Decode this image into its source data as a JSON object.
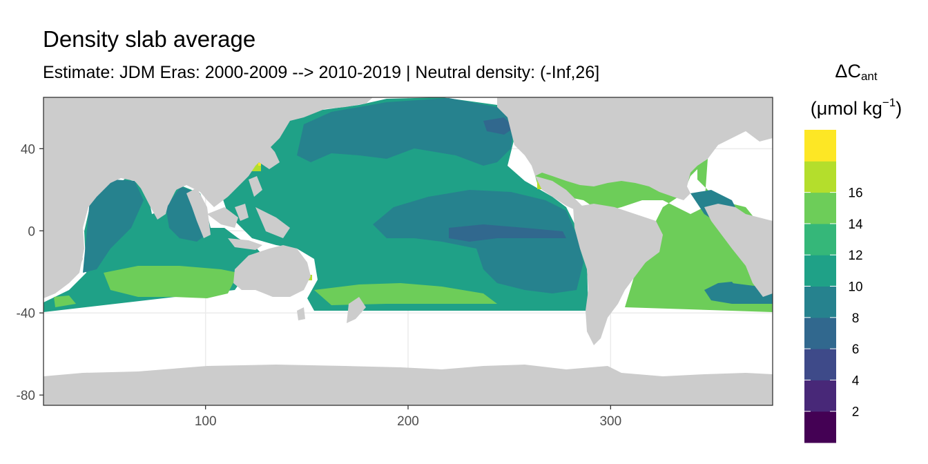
{
  "title": "Density slab average",
  "subtitle": "Estimate: JDM Eras: 2000-2009 --> 2010-2019 | Neutral density: (-Inf,26]",
  "legend": {
    "symbol": "ΔC",
    "subscript": "ant",
    "unit_open": "(μmol kg",
    "unit_sup": "−1",
    "unit_close": ")",
    "bins": [
      {
        "label": "",
        "color": "#440154"
      },
      {
        "label": "2",
        "color": "#482878"
      },
      {
        "label": "4",
        "color": "#3e4a89"
      },
      {
        "label": "6",
        "color": "#31688e"
      },
      {
        "label": "8",
        "color": "#26828e"
      },
      {
        "label": "10",
        "color": "#1fa187"
      },
      {
        "label": "12",
        "color": "#35b779"
      },
      {
        "label": "14",
        "color": "#6dcd59"
      },
      {
        "label": "16",
        "color": "#b4de2c"
      },
      {
        "label": "",
        "color": "#fde725"
      }
    ]
  },
  "axes": {
    "x_ticks": [
      100,
      200,
      300
    ],
    "y_ticks": [
      40,
      0,
      -40,
      -80
    ],
    "xlim": [
      20,
      380
    ],
    "ylim": [
      -85,
      65
    ],
    "x_tick_labels": [
      "100",
      "200",
      "300"
    ],
    "y_tick_labels": [
      "40",
      "0",
      "-40",
      "-80"
    ]
  },
  "colors": {
    "land": "#cccccc",
    "panel_bg": "#ffffff",
    "grid": "#ebebeb",
    "border": "#333333"
  }
}
